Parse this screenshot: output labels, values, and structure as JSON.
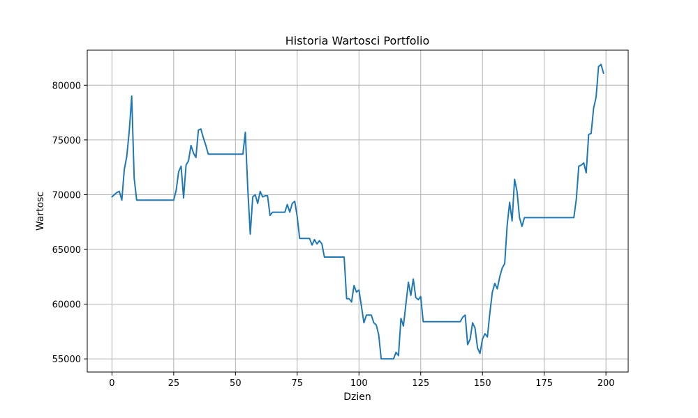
{
  "chart_data": {
    "type": "line",
    "title": "Historia Wartosci Portfolio",
    "xlabel": "Dzien",
    "ylabel": "Wartosc",
    "xlim": [
      -10,
      209
    ],
    "ylim": [
      53800,
      83200
    ],
    "xticks": [
      0,
      25,
      50,
      75,
      100,
      125,
      150,
      175,
      200
    ],
    "yticks": [
      55000,
      60000,
      65000,
      70000,
      75000,
      80000
    ],
    "grid": true,
    "line_color": "#1f77b4",
    "series": [
      {
        "x": [
          0,
          1,
          2,
          3,
          4,
          5,
          6,
          7,
          8,
          9,
          10,
          11,
          12,
          13,
          14,
          15,
          16,
          17,
          18,
          19,
          20,
          21,
          22,
          23,
          24,
          25,
          26,
          27,
          28,
          29,
          30,
          31,
          32,
          33,
          34,
          35,
          36,
          37,
          38,
          39,
          40,
          41,
          42,
          43,
          44,
          45,
          46,
          47,
          48,
          49,
          50,
          51,
          52,
          53,
          54,
          55,
          56,
          57,
          58,
          59,
          60,
          61,
          62,
          63,
          64,
          65,
          66,
          67,
          68,
          69,
          70,
          71,
          72,
          73,
          74,
          75,
          76,
          77,
          78,
          79,
          80,
          81,
          82,
          83,
          84,
          85,
          86,
          87,
          88,
          89,
          90,
          91,
          92,
          93,
          94,
          95,
          96,
          97,
          98,
          99,
          100,
          101,
          102,
          103,
          104,
          105,
          106,
          107,
          108,
          109,
          110,
          111,
          112,
          113,
          114,
          115,
          116,
          117,
          118,
          119,
          120,
          121,
          122,
          123,
          124,
          125,
          126,
          127,
          128,
          129,
          130,
          131,
          132,
          133,
          134,
          135,
          136,
          137,
          138,
          139,
          140,
          141,
          142,
          143,
          144,
          145,
          146,
          147,
          148,
          149,
          150,
          151,
          152,
          153,
          154,
          155,
          156,
          157,
          158,
          159,
          160,
          161,
          162,
          163,
          164,
          165,
          166,
          167,
          168,
          169,
          170,
          171,
          172,
          173,
          174,
          175,
          176,
          177,
          178,
          179,
          180,
          181,
          182,
          183,
          184,
          185,
          186,
          187,
          188,
          189,
          190,
          191,
          192,
          193,
          194,
          195,
          196,
          197,
          198,
          199
        ],
        "y": [
          69800,
          70000,
          70200,
          70300,
          69500,
          72300,
          73500,
          75800,
          79000,
          71500,
          69500,
          69500,
          69500,
          69500,
          69500,
          69500,
          69500,
          69500,
          69500,
          69500,
          69500,
          69500,
          69500,
          69500,
          69500,
          69500,
          70400,
          72100,
          72600,
          69700,
          72700,
          73100,
          74500,
          73800,
          73400,
          75900,
          76000,
          75200,
          74500,
          73700,
          73700,
          73700,
          73700,
          73700,
          73700,
          73700,
          73700,
          73700,
          73700,
          73700,
          73700,
          73700,
          73700,
          73700,
          75700,
          70500,
          66400,
          69800,
          70000,
          69200,
          70300,
          69800,
          69900,
          69900,
          68100,
          68400,
          68400,
          68400,
          68400,
          68400,
          68400,
          69100,
          68400,
          69200,
          69400,
          68000,
          66000,
          66000,
          66000,
          66000,
          66000,
          65400,
          65900,
          65500,
          65800,
          65500,
          64300,
          64300,
          64300,
          64300,
          64300,
          64300,
          64300,
          64300,
          64300,
          60500,
          60500,
          60200,
          61700,
          61100,
          61300,
          59800,
          58300,
          59000,
          59000,
          59000,
          58300,
          58100,
          57200,
          55000,
          55000,
          55000,
          55000,
          55000,
          55000,
          55600,
          55300,
          58700,
          58000,
          60000,
          62000,
          60800,
          62300,
          60600,
          60400,
          60700,
          58400,
          58400,
          58400,
          58400,
          58400,
          58400,
          58400,
          58400,
          58400,
          58400,
          58400,
          58400,
          58400,
          58400,
          58400,
          58400,
          58800,
          59000,
          56300,
          56800,
          58300,
          57800,
          56000,
          55500,
          56800,
          57300,
          57000,
          59200,
          61100,
          61900,
          61400,
          62500,
          63300,
          63700,
          67200,
          69300,
          67600,
          71400,
          70300,
          67900,
          67100,
          67900,
          67900,
          67900,
          67900,
          67900,
          67900,
          67900,
          67900,
          67900,
          67900,
          67900,
          67900,
          67900,
          67900,
          67900,
          67900,
          67900,
          67900,
          67900,
          67900,
          67900,
          69600,
          72600,
          72700,
          72900,
          72000,
          75500,
          75600,
          77900,
          78900,
          81700,
          81900,
          81100
        ]
      }
    ]
  }
}
